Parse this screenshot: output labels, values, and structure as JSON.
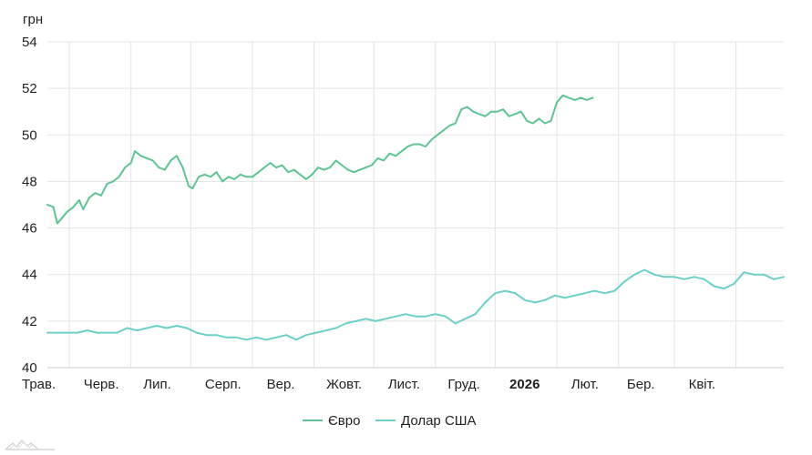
{
  "chart_data": {
    "type": "line",
    "ylabel": "грн",
    "ylim": [
      40,
      54
    ],
    "y_ticks": [
      40,
      42,
      44,
      46,
      48,
      50,
      52,
      54
    ],
    "x_ticks": [
      {
        "label": "Трав.",
        "x": "2025-05-01",
        "bold": false
      },
      {
        "label": "Черв.",
        "x": "2025-06-01",
        "bold": false
      },
      {
        "label": "Лип.",
        "x": "2025-07-01",
        "bold": false
      },
      {
        "label": "Серп.",
        "x": "2025-08-01",
        "bold": false
      },
      {
        "label": "Вер.",
        "x": "2025-09-01",
        "bold": false
      },
      {
        "label": "Жовт.",
        "x": "2025-10-01",
        "bold": false
      },
      {
        "label": "Лист.",
        "x": "2025-11-01",
        "bold": false
      },
      {
        "label": "Груд.",
        "x": "2025-12-01",
        "bold": false
      },
      {
        "label": "2026",
        "x": "2026-01-01",
        "bold": true
      },
      {
        "label": "Лют.",
        "x": "2026-02-01",
        "bold": false
      },
      {
        "label": "Бер.",
        "x": "2026-03-01",
        "bold": false
      },
      {
        "label": "Квіт.",
        "x": "2026-04-01",
        "bold": false
      }
    ],
    "xlim": [
      "2025-04-20",
      "2026-04-25"
    ],
    "grid": true,
    "legend_position": "bottom",
    "series": [
      {
        "name": "Євро",
        "color": "#5ec494",
        "points": [
          [
            "2025-04-20",
            47.0
          ],
          [
            "2025-04-23",
            46.9
          ],
          [
            "2025-04-25",
            46.2
          ],
          [
            "2025-04-27",
            46.4
          ],
          [
            "2025-04-30",
            46.7
          ],
          [
            "2025-05-03",
            46.9
          ],
          [
            "2025-05-06",
            47.2
          ],
          [
            "2025-05-08",
            46.8
          ],
          [
            "2025-05-11",
            47.3
          ],
          [
            "2025-05-14",
            47.5
          ],
          [
            "2025-05-17",
            47.4
          ],
          [
            "2025-05-20",
            47.9
          ],
          [
            "2025-05-23",
            48.0
          ],
          [
            "2025-05-26",
            48.2
          ],
          [
            "2025-05-29",
            48.6
          ],
          [
            "2025-06-01",
            48.8
          ],
          [
            "2025-06-03",
            49.3
          ],
          [
            "2025-06-06",
            49.1
          ],
          [
            "2025-06-09",
            49.0
          ],
          [
            "2025-06-12",
            48.9
          ],
          [
            "2025-06-15",
            48.6
          ],
          [
            "2025-06-18",
            48.5
          ],
          [
            "2025-06-21",
            48.9
          ],
          [
            "2025-06-24",
            49.1
          ],
          [
            "2025-06-27",
            48.6
          ],
          [
            "2025-06-30",
            47.8
          ],
          [
            "2025-07-02",
            47.7
          ],
          [
            "2025-07-05",
            48.2
          ],
          [
            "2025-07-08",
            48.3
          ],
          [
            "2025-07-11",
            48.2
          ],
          [
            "2025-07-14",
            48.4
          ],
          [
            "2025-07-17",
            48.0
          ],
          [
            "2025-07-20",
            48.2
          ],
          [
            "2025-07-23",
            48.1
          ],
          [
            "2025-07-26",
            48.3
          ],
          [
            "2025-07-29",
            48.2
          ],
          [
            "2025-08-01",
            48.2
          ],
          [
            "2025-08-04",
            48.4
          ],
          [
            "2025-08-07",
            48.6
          ],
          [
            "2025-08-10",
            48.8
          ],
          [
            "2025-08-13",
            48.6
          ],
          [
            "2025-08-16",
            48.7
          ],
          [
            "2025-08-19",
            48.4
          ],
          [
            "2025-08-22",
            48.5
          ],
          [
            "2025-08-25",
            48.3
          ],
          [
            "2025-08-28",
            48.1
          ],
          [
            "2025-08-31",
            48.3
          ],
          [
            "2025-09-03",
            48.6
          ],
          [
            "2025-09-06",
            48.5
          ],
          [
            "2025-09-09",
            48.6
          ],
          [
            "2025-09-12",
            48.9
          ],
          [
            "2025-09-15",
            48.7
          ],
          [
            "2025-09-18",
            48.5
          ],
          [
            "2025-09-21",
            48.4
          ],
          [
            "2025-09-24",
            48.5
          ],
          [
            "2025-09-27",
            48.6
          ],
          [
            "2025-09-30",
            48.7
          ],
          [
            "2025-10-03",
            49.0
          ],
          [
            "2025-10-06",
            48.9
          ],
          [
            "2025-10-09",
            49.2
          ],
          [
            "2025-10-12",
            49.1
          ],
          [
            "2025-10-15",
            49.3
          ],
          [
            "2025-10-18",
            49.5
          ],
          [
            "2025-10-21",
            49.6
          ],
          [
            "2025-10-24",
            49.6
          ],
          [
            "2025-10-27",
            49.5
          ],
          [
            "2025-10-30",
            49.8
          ],
          [
            "2025-11-02",
            50.0
          ],
          [
            "2025-11-05",
            50.2
          ],
          [
            "2025-11-08",
            50.4
          ],
          [
            "2025-11-11",
            50.5
          ],
          [
            "2025-11-14",
            51.1
          ],
          [
            "2025-11-17",
            51.2
          ],
          [
            "2025-11-20",
            51.0
          ],
          [
            "2025-11-23",
            50.9
          ],
          [
            "2025-11-26",
            50.8
          ],
          [
            "2025-11-29",
            51.0
          ],
          [
            "2025-12-02",
            51.0
          ],
          [
            "2025-12-05",
            51.1
          ],
          [
            "2025-12-08",
            50.8
          ],
          [
            "2025-12-11",
            50.9
          ],
          [
            "2025-12-14",
            51.0
          ],
          [
            "2025-12-17",
            50.6
          ],
          [
            "2025-12-20",
            50.5
          ],
          [
            "2025-12-23",
            50.7
          ],
          [
            "2025-12-26",
            50.5
          ],
          [
            "2025-12-29",
            50.6
          ],
          [
            "2026-01-01",
            51.4
          ],
          [
            "2026-01-04",
            51.7
          ],
          [
            "2026-01-07",
            51.6
          ],
          [
            "2026-01-10",
            51.5
          ],
          [
            "2026-01-13",
            51.6
          ],
          [
            "2026-01-16",
            51.5
          ],
          [
            "2026-01-19",
            51.6
          ]
        ]
      },
      {
        "name": "Долар США",
        "color": "#6ccfc8",
        "points": [
          [
            "2025-04-20",
            41.5
          ],
          [
            "2025-04-25",
            41.5
          ],
          [
            "2025-04-30",
            41.5
          ],
          [
            "2025-05-05",
            41.5
          ],
          [
            "2025-05-10",
            41.6
          ],
          [
            "2025-05-15",
            41.5
          ],
          [
            "2025-05-20",
            41.5
          ],
          [
            "2025-05-25",
            41.5
          ],
          [
            "2025-05-30",
            41.7
          ],
          [
            "2025-06-04",
            41.6
          ],
          [
            "2025-06-09",
            41.7
          ],
          [
            "2025-06-14",
            41.8
          ],
          [
            "2025-06-19",
            41.7
          ],
          [
            "2025-06-24",
            41.8
          ],
          [
            "2025-06-29",
            41.7
          ],
          [
            "2025-07-04",
            41.5
          ],
          [
            "2025-07-09",
            41.4
          ],
          [
            "2025-07-14",
            41.4
          ],
          [
            "2025-07-19",
            41.3
          ],
          [
            "2025-07-24",
            41.3
          ],
          [
            "2025-07-29",
            41.2
          ],
          [
            "2025-08-03",
            41.3
          ],
          [
            "2025-08-08",
            41.2
          ],
          [
            "2025-08-13",
            41.3
          ],
          [
            "2025-08-18",
            41.4
          ],
          [
            "2025-08-23",
            41.2
          ],
          [
            "2025-08-28",
            41.4
          ],
          [
            "2025-09-02",
            41.5
          ],
          [
            "2025-09-07",
            41.6
          ],
          [
            "2025-09-12",
            41.7
          ],
          [
            "2025-09-17",
            41.9
          ],
          [
            "2025-09-22",
            42.0
          ],
          [
            "2025-09-27",
            42.1
          ],
          [
            "2025-10-02",
            42.0
          ],
          [
            "2025-10-07",
            42.1
          ],
          [
            "2025-10-12",
            42.2
          ],
          [
            "2025-10-17",
            42.3
          ],
          [
            "2025-10-22",
            42.2
          ],
          [
            "2025-10-27",
            42.2
          ],
          [
            "2025-11-01",
            42.3
          ],
          [
            "2025-11-06",
            42.2
          ],
          [
            "2025-11-11",
            41.9
          ],
          [
            "2025-11-16",
            42.1
          ],
          [
            "2025-11-21",
            42.3
          ],
          [
            "2025-11-26",
            42.8
          ],
          [
            "2025-12-01",
            43.2
          ],
          [
            "2025-12-06",
            43.3
          ],
          [
            "2025-12-11",
            43.2
          ],
          [
            "2025-12-16",
            42.9
          ],
          [
            "2025-12-21",
            42.8
          ],
          [
            "2025-12-26",
            42.9
          ],
          [
            "2025-12-31",
            43.1
          ],
          [
            "2026-01-05",
            43.0
          ],
          [
            "2026-01-10",
            43.1
          ],
          [
            "2026-01-15",
            43.2
          ],
          [
            "2026-01-20",
            43.3
          ],
          [
            "2026-01-25",
            43.2
          ],
          [
            "2026-01-30",
            43.3
          ],
          [
            "2026-02-04",
            43.7
          ],
          [
            "2026-02-09",
            44.0
          ],
          [
            "2026-02-14",
            44.2
          ],
          [
            "2026-02-19",
            44.0
          ],
          [
            "2026-02-24",
            43.9
          ],
          [
            "2026-03-01",
            43.9
          ],
          [
            "2026-03-06",
            43.8
          ],
          [
            "2026-03-11",
            43.9
          ],
          [
            "2026-03-16",
            43.8
          ],
          [
            "2026-03-21",
            43.5
          ],
          [
            "2026-03-26",
            43.4
          ],
          [
            "2026-03-31",
            43.6
          ],
          [
            "2026-04-05",
            44.1
          ],
          [
            "2026-04-10",
            44.0
          ],
          [
            "2026-04-15",
            44.0
          ],
          [
            "2026-04-20",
            43.8
          ],
          [
            "2026-04-25",
            43.9
          ]
        ]
      }
    ]
  },
  "legend": {
    "items": [
      {
        "label": "Євро",
        "color": "#5ec494"
      },
      {
        "label": "Долар США",
        "color": "#6ccfc8"
      }
    ]
  }
}
